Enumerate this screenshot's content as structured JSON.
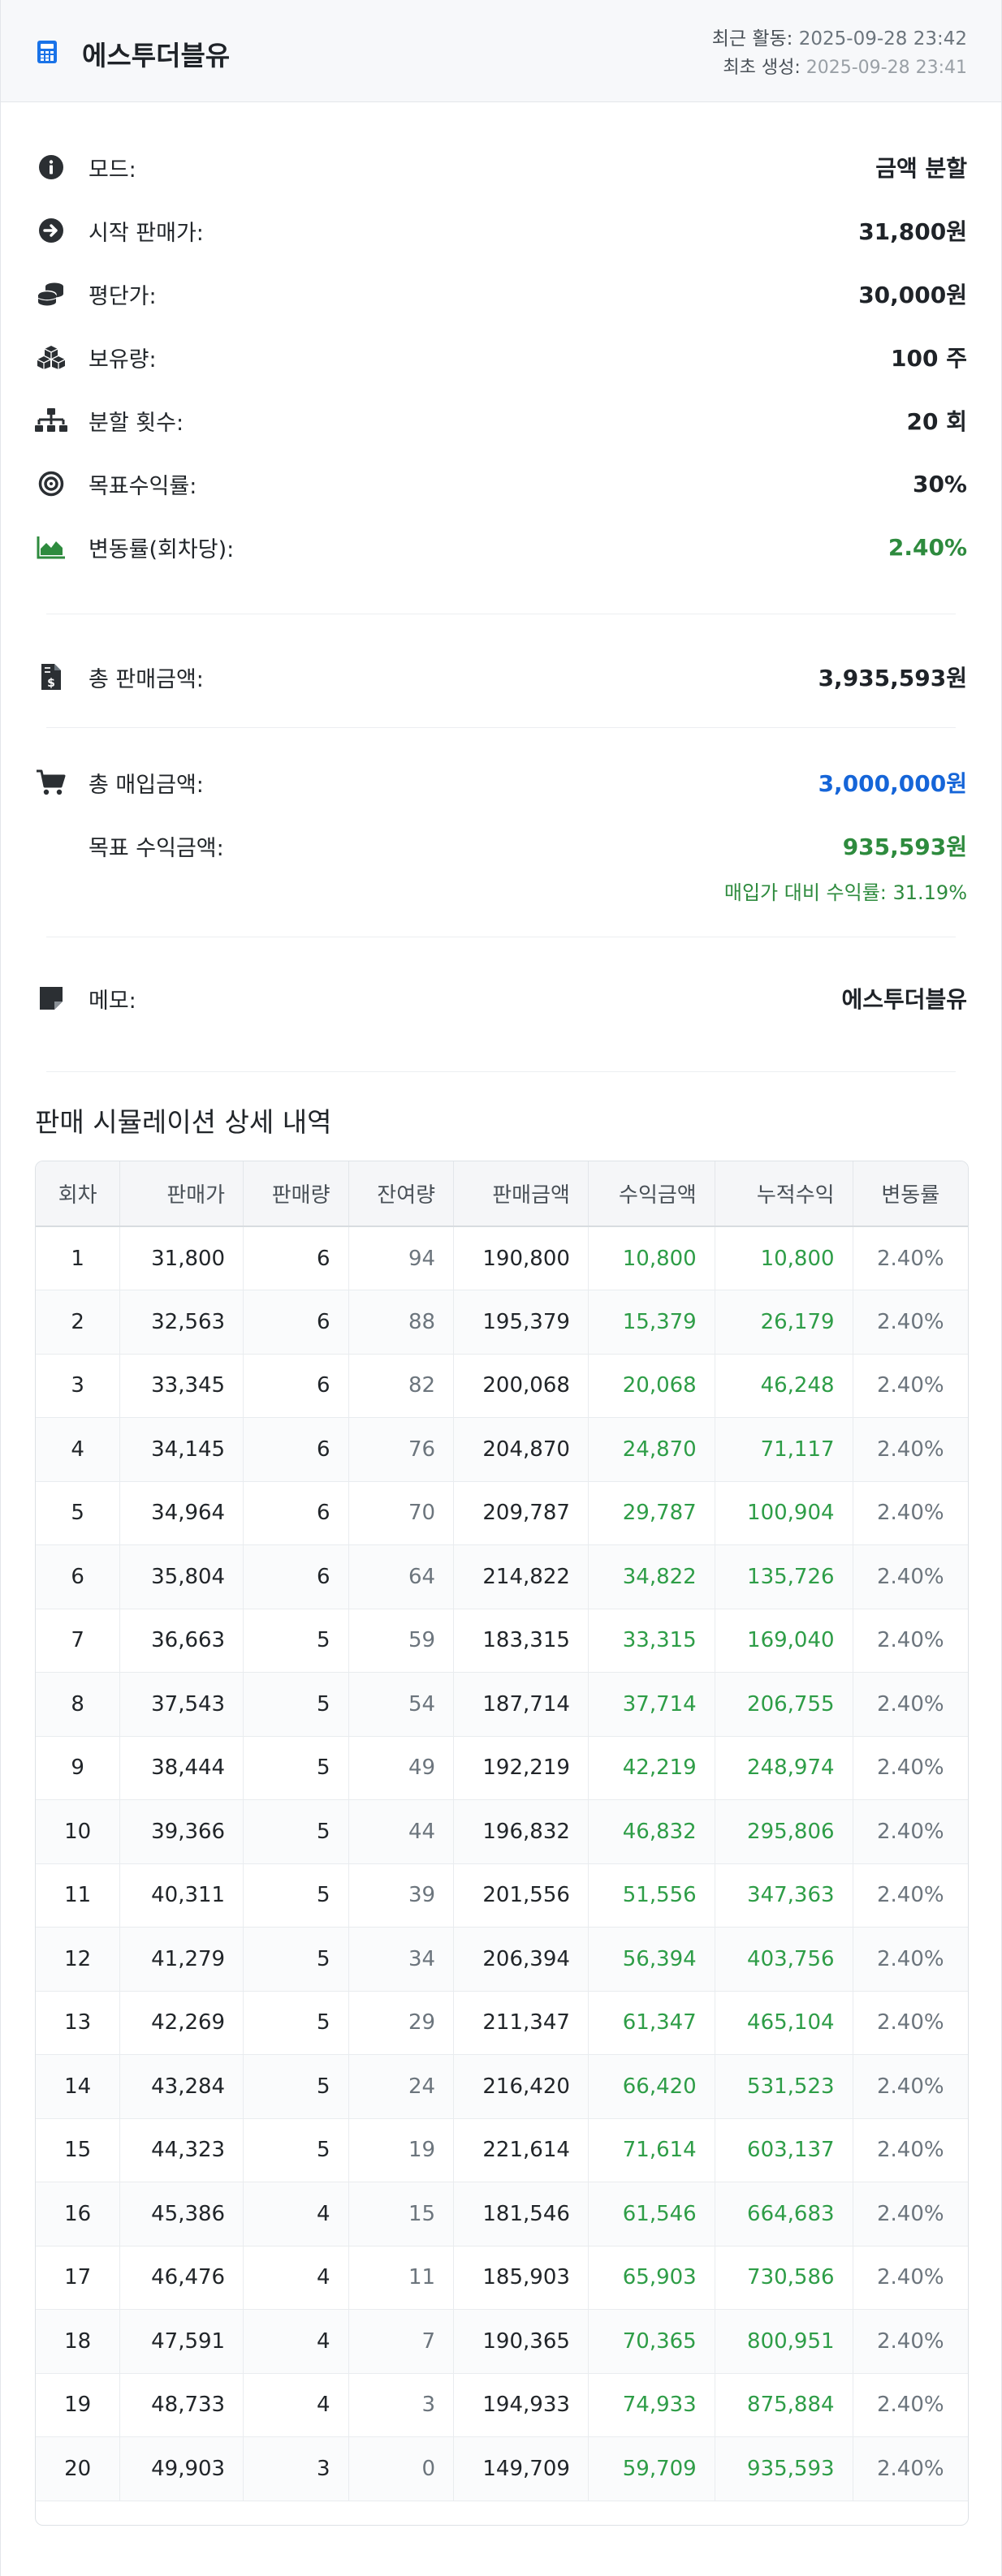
{
  "header": {
    "title": "에스투더블유",
    "last_activity_label": "최근 활동:",
    "last_activity_value": "2025-09-28 23:42",
    "created_label": "최초 생성:",
    "created_value": "2025-09-28 23:41"
  },
  "summary": {
    "mode_label": "모드:",
    "mode_value": "금액 분할",
    "start_price_label": "시작 판매가:",
    "start_price_value": "31,800원",
    "avg_price_label": "평단가:",
    "avg_price_value": "30,000원",
    "holding_label": "보유량:",
    "holding_value": "100 주",
    "splits_label": "분할 횟수:",
    "splits_value": "20 회",
    "target_rate_label": "목표수익률:",
    "target_rate_value": "30%",
    "change_rate_label": "변동률(회차당):",
    "change_rate_value": "2.40%",
    "total_sale_label": "총 판매금액:",
    "total_sale_value": "3,935,593원",
    "total_buy_label": "총 매입금액:",
    "total_buy_value": "3,000,000원",
    "target_profit_label": "목표 수익금액:",
    "target_profit_value": "935,593원",
    "profit_ratio_text": "매입가 대비 수익률: 31.19%",
    "memo_label": "메모:",
    "memo_value": "에스투더블유"
  },
  "simulation": {
    "section_title": "판매 시뮬레이션 상세 내역",
    "columns": [
      "회차",
      "판매가",
      "판매량",
      "잔여량",
      "판매금액",
      "수익금액",
      "누적수익",
      "변동률"
    ],
    "rows": [
      [
        "1",
        "31,800",
        "6",
        "94",
        "190,800",
        "10,800",
        "10,800",
        "2.40%"
      ],
      [
        "2",
        "32,563",
        "6",
        "88",
        "195,379",
        "15,379",
        "26,179",
        "2.40%"
      ],
      [
        "3",
        "33,345",
        "6",
        "82",
        "200,068",
        "20,068",
        "46,248",
        "2.40%"
      ],
      [
        "4",
        "34,145",
        "6",
        "76",
        "204,870",
        "24,870",
        "71,117",
        "2.40%"
      ],
      [
        "5",
        "34,964",
        "6",
        "70",
        "209,787",
        "29,787",
        "100,904",
        "2.40%"
      ],
      [
        "6",
        "35,804",
        "6",
        "64",
        "214,822",
        "34,822",
        "135,726",
        "2.40%"
      ],
      [
        "7",
        "36,663",
        "5",
        "59",
        "183,315",
        "33,315",
        "169,040",
        "2.40%"
      ],
      [
        "8",
        "37,543",
        "5",
        "54",
        "187,714",
        "37,714",
        "206,755",
        "2.40%"
      ],
      [
        "9",
        "38,444",
        "5",
        "49",
        "192,219",
        "42,219",
        "248,974",
        "2.40%"
      ],
      [
        "10",
        "39,366",
        "5",
        "44",
        "196,832",
        "46,832",
        "295,806",
        "2.40%"
      ],
      [
        "11",
        "40,311",
        "5",
        "39",
        "201,556",
        "51,556",
        "347,363",
        "2.40%"
      ],
      [
        "12",
        "41,279",
        "5",
        "34",
        "206,394",
        "56,394",
        "403,756",
        "2.40%"
      ],
      [
        "13",
        "42,269",
        "5",
        "29",
        "211,347",
        "61,347",
        "465,104",
        "2.40%"
      ],
      [
        "14",
        "43,284",
        "5",
        "24",
        "216,420",
        "66,420",
        "531,523",
        "2.40%"
      ],
      [
        "15",
        "44,323",
        "5",
        "19",
        "221,614",
        "71,614",
        "603,137",
        "2.40%"
      ],
      [
        "16",
        "45,386",
        "4",
        "15",
        "181,546",
        "61,546",
        "664,683",
        "2.40%"
      ],
      [
        "17",
        "46,476",
        "4",
        "11",
        "185,903",
        "65,903",
        "730,586",
        "2.40%"
      ],
      [
        "18",
        "47,591",
        "4",
        "7",
        "190,365",
        "70,365",
        "800,951",
        "2.40%"
      ],
      [
        "19",
        "48,733",
        "4",
        "3",
        "194,933",
        "74,933",
        "875,884",
        "2.40%"
      ],
      [
        "20",
        "49,903",
        "3",
        "0",
        "149,709",
        "59,709",
        "935,593",
        "2.40%"
      ]
    ]
  },
  "colors": {
    "accent_blue": "#1565d8",
    "profit_green": "#2e8b3e",
    "table_green": "#2e9d47"
  },
  "icons": [
    "calculator-icon",
    "info-icon",
    "arrow-right-circle-icon",
    "coins-icon",
    "cubes-icon",
    "sitemap-icon",
    "target-icon",
    "area-chart-icon",
    "invoice-dollar-icon",
    "cart-icon",
    "sticky-note-icon"
  ]
}
